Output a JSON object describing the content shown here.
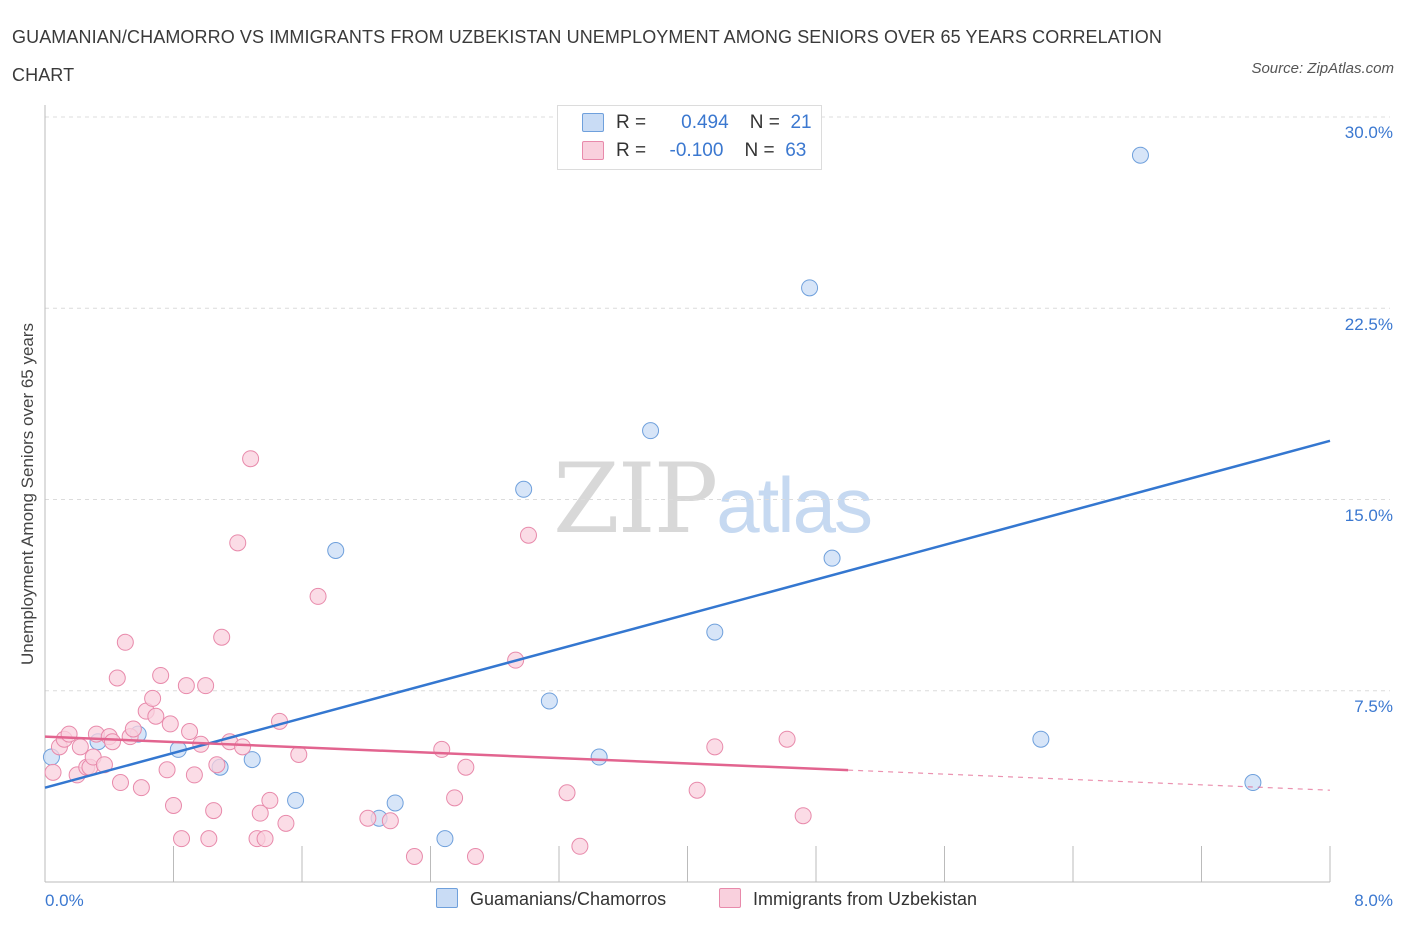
{
  "chart_data": {
    "type": "scatter",
    "title": "GUAMANIAN/CHAMORRO VS IMMIGRANTS FROM UZBEKISTAN UNEMPLOYMENT AMONG SENIORS OVER 65 YEARS CORRELATION CHART",
    "source": "Source: ZipAtlas.com",
    "xlabel": "",
    "ylabel": "Unemployment Among Seniors over 65 years",
    "xlim": [
      0,
      8
    ],
    "ylim": [
      0,
      30
    ],
    "x_tick_labels": [
      "0.0%",
      "8.0%"
    ],
    "y_ticks": [
      7.5,
      15.0,
      22.5,
      30.0
    ],
    "y_tick_labels": [
      "7.5%",
      "15.0%",
      "22.5%",
      "30.0%"
    ],
    "grid": true,
    "watermark": {
      "zip": "ZIP",
      "atlas": "atlas"
    },
    "legend": [
      {
        "name": "Guamanians/Chamorros",
        "r_label": "R =",
        "r": "0.494",
        "n_label": "N =",
        "n": "21"
      },
      {
        "name": "Immigrants from Uzbekistan",
        "r_label": "R =",
        "r": "-0.100",
        "n_label": "N =",
        "n": "63"
      }
    ],
    "series": [
      {
        "name": "Guamanians/Chamorros",
        "color": "#6fa0dc",
        "fill": "#c9dcf5",
        "trend": {
          "x0": 0.0,
          "y0": 3.7,
          "x1": 8.0,
          "y1": 17.3,
          "solid_to": 8.0
        },
        "points": [
          [
            0.04,
            4.9
          ],
          [
            0.33,
            5.5
          ],
          [
            0.58,
            5.8
          ],
          [
            0.83,
            5.2
          ],
          [
            1.09,
            4.5
          ],
          [
            1.29,
            4.8
          ],
          [
            1.56,
            3.2
          ],
          [
            1.81,
            13.0
          ],
          [
            2.08,
            2.5
          ],
          [
            2.18,
            3.1
          ],
          [
            2.49,
            1.7
          ],
          [
            2.98,
            15.4
          ],
          [
            3.14,
            7.1
          ],
          [
            3.45,
            4.9
          ],
          [
            3.77,
            17.7
          ],
          [
            4.17,
            9.8
          ],
          [
            4.76,
            23.3
          ],
          [
            4.9,
            12.7
          ],
          [
            6.2,
            5.6
          ],
          [
            6.82,
            28.5
          ],
          [
            7.52,
            3.9
          ]
        ]
      },
      {
        "name": "Immigrants from Uzbekistan",
        "color": "#e88aab",
        "fill": "#f9d0dd",
        "trend": {
          "x0": 0.0,
          "y0": 5.7,
          "x1": 8.0,
          "y1": 3.6,
          "solid_to": 5.0
        },
        "points": [
          [
            0.05,
            4.3
          ],
          [
            0.09,
            5.3
          ],
          [
            0.12,
            5.6
          ],
          [
            0.15,
            5.8
          ],
          [
            0.2,
            4.2
          ],
          [
            0.22,
            5.3
          ],
          [
            0.26,
            4.5
          ],
          [
            0.28,
            4.5
          ],
          [
            0.3,
            4.9
          ],
          [
            0.32,
            5.8
          ],
          [
            0.37,
            4.6
          ],
          [
            0.4,
            5.7
          ],
          [
            0.42,
            5.5
          ],
          [
            0.45,
            8.0
          ],
          [
            0.47,
            3.9
          ],
          [
            0.5,
            9.4
          ],
          [
            0.53,
            5.7
          ],
          [
            0.55,
            6.0
          ],
          [
            0.6,
            3.7
          ],
          [
            0.63,
            6.7
          ],
          [
            0.67,
            7.2
          ],
          [
            0.69,
            6.5
          ],
          [
            0.72,
            8.1
          ],
          [
            0.76,
            4.4
          ],
          [
            0.78,
            6.2
          ],
          [
            0.8,
            3.0
          ],
          [
            0.85,
            1.7
          ],
          [
            0.88,
            7.7
          ],
          [
            0.9,
            5.9
          ],
          [
            0.93,
            4.2
          ],
          [
            0.97,
            5.4
          ],
          [
            1.0,
            7.7
          ],
          [
            1.02,
            1.7
          ],
          [
            1.05,
            2.8
          ],
          [
            1.07,
            4.6
          ],
          [
            1.1,
            9.6
          ],
          [
            1.15,
            5.5
          ],
          [
            1.2,
            13.3
          ],
          [
            1.23,
            5.3
          ],
          [
            1.28,
            16.6
          ],
          [
            1.32,
            1.7
          ],
          [
            1.34,
            2.7
          ],
          [
            1.37,
            1.7
          ],
          [
            1.4,
            3.2
          ],
          [
            1.46,
            6.3
          ],
          [
            1.5,
            2.3
          ],
          [
            1.58,
            5.0
          ],
          [
            1.7,
            11.2
          ],
          [
            2.01,
            2.5
          ],
          [
            2.15,
            2.4
          ],
          [
            2.3,
            1.0
          ],
          [
            2.47,
            5.2
          ],
          [
            2.55,
            3.3
          ],
          [
            2.62,
            4.5
          ],
          [
            2.68,
            1.0
          ],
          [
            2.93,
            8.7
          ],
          [
            3.01,
            13.6
          ],
          [
            3.25,
            3.5
          ],
          [
            3.33,
            1.4
          ],
          [
            4.06,
            3.6
          ],
          [
            4.17,
            5.3
          ],
          [
            4.62,
            5.6
          ],
          [
            4.72,
            2.6
          ]
        ]
      }
    ]
  }
}
